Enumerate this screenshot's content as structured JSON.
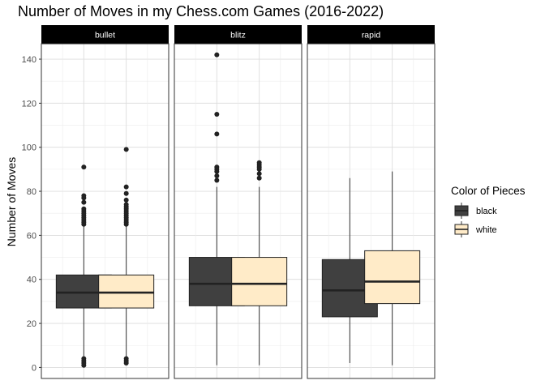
{
  "chart_data": {
    "type": "boxplot",
    "title": "Number of Moves in my Chess.com Games (2016-2022)",
    "xlabel": "",
    "ylabel": "Number of Moves",
    "ylim": [
      -5,
      147
    ],
    "yticks": [
      0,
      20,
      40,
      60,
      80,
      100,
      120,
      140
    ],
    "grid": true,
    "legend": {
      "title": "Color of Pieces",
      "position": "right",
      "entries": [
        {
          "label": "black",
          "color": "#404040"
        },
        {
          "label": "white",
          "color": "#FFEBC8"
        }
      ]
    },
    "panels": [
      {
        "name": "bullet",
        "boxes": [
          {
            "group": "black",
            "min": 5,
            "q1": 27,
            "median": 34,
            "q3": 42,
            "max": 64,
            "outliers": [
              65,
              66,
              67,
              68,
              69,
              70,
              71,
              72,
              75,
              77,
              78,
              91,
              1,
              2,
              3,
              4
            ]
          },
          {
            "group": "white",
            "min": 5,
            "q1": 27,
            "median": 34,
            "q3": 42,
            "max": 64,
            "outliers": [
              65,
              66,
              67,
              68,
              69,
              70,
              71,
              72,
              73,
              74,
              76,
              79,
              82,
              99,
              2,
              3,
              4
            ]
          }
        ]
      },
      {
        "name": "blitz",
        "boxes": [
          {
            "group": "black",
            "min": 1,
            "q1": 28,
            "median": 38,
            "q3": 50,
            "max": 82,
            "outliers": [
              85,
              87,
              89,
              90,
              91,
              106,
              115,
              142
            ]
          },
          {
            "group": "white",
            "min": 1,
            "q1": 28,
            "median": 38,
            "q3": 50,
            "max": 82,
            "outliers": [
              86,
              88,
              90,
              91,
              92,
              93
            ]
          }
        ]
      },
      {
        "name": "rapid",
        "boxes": [
          {
            "group": "black",
            "min": 2,
            "q1": 23,
            "median": 35,
            "q3": 49,
            "max": 86,
            "outliers": []
          },
          {
            "group": "white",
            "min": 1,
            "q1": 29,
            "median": 39,
            "q3": 53,
            "max": 89,
            "outliers": []
          }
        ]
      }
    ]
  }
}
